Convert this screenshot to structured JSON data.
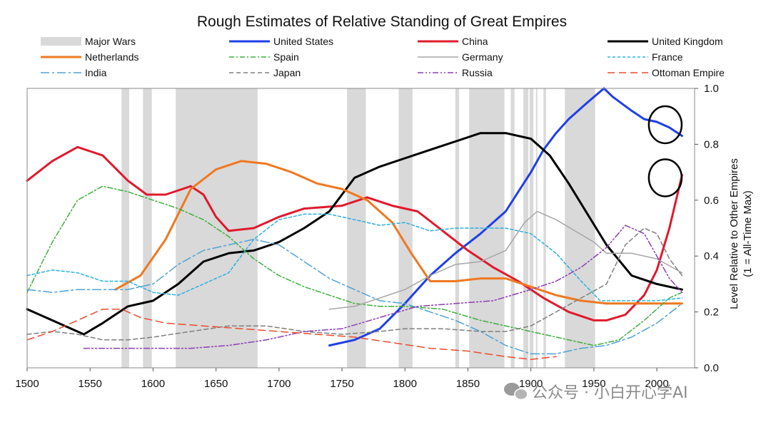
{
  "chart_data": {
    "type": "line",
    "title": "Rough Estimates of Relative Standing of Great Empires",
    "xlabel": "",
    "ylabel": "Level Relative to Other Empires",
    "ylabel_sub": "(1 = All-Time Max)",
    "xlim": [
      1500,
      2030
    ],
    "ylim": [
      0,
      1
    ],
    "x_ticks": [
      "1500",
      "1550",
      "1600",
      "1650",
      "1700",
      "1750",
      "1800",
      "1850",
      "1900",
      "1950",
      "2000"
    ],
    "y_ticks": [
      "0.0",
      "0.2",
      "0.4",
      "0.6",
      "0.8",
      "1.0"
    ],
    "y_axis_side": "right",
    "legend_position": "top",
    "major_wars_label": "Major Wars",
    "major_wars_color": "#d9d9d9",
    "major_wars": [
      [
        1575,
        1581
      ],
      [
        1592,
        1599
      ],
      [
        1618,
        1683
      ],
      [
        1754,
        1769
      ],
      [
        1795,
        1806
      ],
      [
        1840,
        1843
      ],
      [
        1851,
        1879
      ],
      [
        1884,
        1887
      ],
      [
        1894,
        1898
      ],
      [
        1899,
        1902
      ],
      [
        1904,
        1905
      ],
      [
        1910,
        1912
      ],
      [
        1927,
        1951
      ]
    ],
    "highlights": [
      {
        "x": 2005,
        "y": 0.87
      },
      {
        "x": 2005,
        "y": 0.68
      }
    ],
    "series": [
      {
        "name": "United States",
        "color": "#1f3fe8",
        "width": 3,
        "dash": "",
        "points": [
          [
            1740,
            0.08
          ],
          [
            1760,
            0.1
          ],
          [
            1780,
            0.14
          ],
          [
            1800,
            0.23
          ],
          [
            1820,
            0.33
          ],
          [
            1840,
            0.41
          ],
          [
            1860,
            0.48
          ],
          [
            1880,
            0.56
          ],
          [
            1890,
            0.63
          ],
          [
            1900,
            0.7
          ],
          [
            1910,
            0.78
          ],
          [
            1920,
            0.84
          ],
          [
            1930,
            0.89
          ],
          [
            1945,
            0.95
          ],
          [
            1958,
            1.0
          ],
          [
            1965,
            0.97
          ],
          [
            1980,
            0.92
          ],
          [
            1990,
            0.89
          ],
          [
            2000,
            0.88
          ],
          [
            2010,
            0.86
          ],
          [
            2020,
            0.83
          ]
        ]
      },
      {
        "name": "China",
        "color": "#e0192d",
        "width": 3,
        "dash": "",
        "points": [
          [
            1500,
            0.67
          ],
          [
            1520,
            0.74
          ],
          [
            1540,
            0.79
          ],
          [
            1560,
            0.76
          ],
          [
            1580,
            0.67
          ],
          [
            1595,
            0.62
          ],
          [
            1610,
            0.62
          ],
          [
            1630,
            0.65
          ],
          [
            1640,
            0.62
          ],
          [
            1650,
            0.54
          ],
          [
            1660,
            0.49
          ],
          [
            1680,
            0.5
          ],
          [
            1700,
            0.54
          ],
          [
            1720,
            0.57
          ],
          [
            1750,
            0.58
          ],
          [
            1770,
            0.61
          ],
          [
            1790,
            0.58
          ],
          [
            1810,
            0.56
          ],
          [
            1830,
            0.49
          ],
          [
            1850,
            0.42
          ],
          [
            1870,
            0.36
          ],
          [
            1890,
            0.31
          ],
          [
            1910,
            0.25
          ],
          [
            1930,
            0.2
          ],
          [
            1950,
            0.17
          ],
          [
            1960,
            0.17
          ],
          [
            1975,
            0.19
          ],
          [
            1990,
            0.26
          ],
          [
            2000,
            0.35
          ],
          [
            2010,
            0.5
          ],
          [
            2020,
            0.69
          ]
        ]
      },
      {
        "name": "United Kingdom",
        "color": "#000000",
        "width": 3,
        "dash": "",
        "points": [
          [
            1500,
            0.21
          ],
          [
            1520,
            0.17
          ],
          [
            1545,
            0.12
          ],
          [
            1560,
            0.16
          ],
          [
            1580,
            0.22
          ],
          [
            1600,
            0.24
          ],
          [
            1620,
            0.3
          ],
          [
            1640,
            0.38
          ],
          [
            1660,
            0.41
          ],
          [
            1680,
            0.42
          ],
          [
            1700,
            0.45
          ],
          [
            1720,
            0.5
          ],
          [
            1740,
            0.56
          ],
          [
            1760,
            0.68
          ],
          [
            1780,
            0.72
          ],
          [
            1800,
            0.75
          ],
          [
            1820,
            0.78
          ],
          [
            1840,
            0.81
          ],
          [
            1860,
            0.84
          ],
          [
            1880,
            0.84
          ],
          [
            1900,
            0.82
          ],
          [
            1915,
            0.76
          ],
          [
            1930,
            0.66
          ],
          [
            1945,
            0.55
          ],
          [
            1960,
            0.44
          ],
          [
            1980,
            0.33
          ],
          [
            2000,
            0.3
          ],
          [
            2010,
            0.29
          ],
          [
            2020,
            0.28
          ]
        ]
      },
      {
        "name": "Netherlands",
        "color": "#f07820",
        "width": 3,
        "dash": "",
        "points": [
          [
            1570,
            0.28
          ],
          [
            1590,
            0.33
          ],
          [
            1610,
            0.46
          ],
          [
            1630,
            0.64
          ],
          [
            1650,
            0.71
          ],
          [
            1670,
            0.74
          ],
          [
            1690,
            0.73
          ],
          [
            1710,
            0.7
          ],
          [
            1730,
            0.66
          ],
          [
            1750,
            0.64
          ],
          [
            1770,
            0.6
          ],
          [
            1790,
            0.52
          ],
          [
            1805,
            0.41
          ],
          [
            1820,
            0.31
          ],
          [
            1840,
            0.31
          ],
          [
            1860,
            0.32
          ],
          [
            1880,
            0.32
          ],
          [
            1900,
            0.29
          ],
          [
            1920,
            0.26
          ],
          [
            1940,
            0.24
          ],
          [
            1960,
            0.23
          ],
          [
            1990,
            0.23
          ],
          [
            2020,
            0.23
          ]
        ]
      },
      {
        "name": "Spain",
        "color": "#3fae3f",
        "width": 1.5,
        "dash": "7,3,2,3",
        "points": [
          [
            1500,
            0.27
          ],
          [
            1520,
            0.45
          ],
          [
            1540,
            0.6
          ],
          [
            1560,
            0.65
          ],
          [
            1580,
            0.63
          ],
          [
            1600,
            0.6
          ],
          [
            1620,
            0.57
          ],
          [
            1640,
            0.53
          ],
          [
            1660,
            0.47
          ],
          [
            1680,
            0.39
          ],
          [
            1700,
            0.33
          ],
          [
            1720,
            0.29
          ],
          [
            1740,
            0.26
          ],
          [
            1760,
            0.23
          ],
          [
            1780,
            0.22
          ],
          [
            1800,
            0.22
          ],
          [
            1830,
            0.21
          ],
          [
            1860,
            0.17
          ],
          [
            1890,
            0.14
          ],
          [
            1920,
            0.11
          ],
          [
            1950,
            0.08
          ],
          [
            1970,
            0.1
          ],
          [
            1990,
            0.17
          ],
          [
            2010,
            0.25
          ],
          [
            2020,
            0.27
          ]
        ]
      },
      {
        "name": "Germany",
        "color": "#a6a6a6",
        "width": 1.5,
        "dash": "",
        "points": [
          [
            1740,
            0.21
          ],
          [
            1760,
            0.22
          ],
          [
            1780,
            0.25
          ],
          [
            1800,
            0.28
          ],
          [
            1820,
            0.33
          ],
          [
            1840,
            0.37
          ],
          [
            1860,
            0.38
          ],
          [
            1880,
            0.42
          ],
          [
            1895,
            0.52
          ],
          [
            1905,
            0.56
          ],
          [
            1920,
            0.53
          ],
          [
            1935,
            0.49
          ],
          [
            1950,
            0.45
          ],
          [
            1960,
            0.41
          ],
          [
            1980,
            0.41
          ],
          [
            2000,
            0.39
          ],
          [
            2020,
            0.34
          ]
        ]
      },
      {
        "name": "France",
        "color": "#2bb0e0",
        "width": 1.5,
        "dash": "4,3",
        "points": [
          [
            1500,
            0.33
          ],
          [
            1520,
            0.35
          ],
          [
            1540,
            0.34
          ],
          [
            1560,
            0.31
          ],
          [
            1580,
            0.31
          ],
          [
            1600,
            0.27
          ],
          [
            1620,
            0.26
          ],
          [
            1640,
            0.3
          ],
          [
            1660,
            0.34
          ],
          [
            1680,
            0.46
          ],
          [
            1700,
            0.53
          ],
          [
            1720,
            0.55
          ],
          [
            1740,
            0.55
          ],
          [
            1760,
            0.53
          ],
          [
            1780,
            0.51
          ],
          [
            1800,
            0.52
          ],
          [
            1820,
            0.49
          ],
          [
            1840,
            0.5
          ],
          [
            1860,
            0.5
          ],
          [
            1880,
            0.5
          ],
          [
            1900,
            0.48
          ],
          [
            1920,
            0.41
          ],
          [
            1940,
            0.31
          ],
          [
            1955,
            0.24
          ],
          [
            1980,
            0.24
          ],
          [
            2000,
            0.24
          ],
          [
            2020,
            0.25
          ]
        ]
      },
      {
        "name": "India",
        "color": "#4ea3d6",
        "width": 1.5,
        "dash": "12,4,3,4",
        "points": [
          [
            1500,
            0.28
          ],
          [
            1520,
            0.27
          ],
          [
            1540,
            0.28
          ],
          [
            1560,
            0.28
          ],
          [
            1580,
            0.28
          ],
          [
            1600,
            0.3
          ],
          [
            1620,
            0.37
          ],
          [
            1640,
            0.42
          ],
          [
            1660,
            0.44
          ],
          [
            1680,
            0.46
          ],
          [
            1700,
            0.44
          ],
          [
            1720,
            0.38
          ],
          [
            1740,
            0.32
          ],
          [
            1760,
            0.28
          ],
          [
            1780,
            0.24
          ],
          [
            1800,
            0.23
          ],
          [
            1820,
            0.2
          ],
          [
            1840,
            0.17
          ],
          [
            1860,
            0.13
          ],
          [
            1880,
            0.08
          ],
          [
            1900,
            0.05
          ],
          [
            1920,
            0.05
          ],
          [
            1940,
            0.07
          ],
          [
            1960,
            0.08
          ],
          [
            1980,
            0.11
          ],
          [
            2000,
            0.16
          ],
          [
            2020,
            0.23
          ]
        ]
      },
      {
        "name": "Japan",
        "color": "#7f7f7f",
        "width": 1.5,
        "dash": "6,4",
        "points": [
          [
            1500,
            0.12
          ],
          [
            1520,
            0.13
          ],
          [
            1540,
            0.12
          ],
          [
            1560,
            0.1
          ],
          [
            1580,
            0.1
          ],
          [
            1600,
            0.11
          ],
          [
            1630,
            0.13
          ],
          [
            1660,
            0.15
          ],
          [
            1690,
            0.15
          ],
          [
            1720,
            0.13
          ],
          [
            1750,
            0.12
          ],
          [
            1780,
            0.13
          ],
          [
            1800,
            0.14
          ],
          [
            1830,
            0.14
          ],
          [
            1860,
            0.13
          ],
          [
            1880,
            0.13
          ],
          [
            1900,
            0.15
          ],
          [
            1920,
            0.2
          ],
          [
            1940,
            0.25
          ],
          [
            1960,
            0.3
          ],
          [
            1975,
            0.44
          ],
          [
            1990,
            0.5
          ],
          [
            2000,
            0.48
          ],
          [
            2010,
            0.39
          ],
          [
            2020,
            0.33
          ]
        ]
      },
      {
        "name": "Russia",
        "color": "#8a3fb5",
        "width": 1.5,
        "dash": "8,3,2,3,2,3",
        "points": [
          [
            1545,
            0.07
          ],
          [
            1570,
            0.07
          ],
          [
            1600,
            0.07
          ],
          [
            1630,
            0.07
          ],
          [
            1660,
            0.08
          ],
          [
            1690,
            0.1
          ],
          [
            1720,
            0.13
          ],
          [
            1750,
            0.14
          ],
          [
            1780,
            0.18
          ],
          [
            1810,
            0.22
          ],
          [
            1840,
            0.23
          ],
          [
            1870,
            0.24
          ],
          [
            1900,
            0.28
          ],
          [
            1920,
            0.31
          ],
          [
            1940,
            0.36
          ],
          [
            1960,
            0.43
          ],
          [
            1975,
            0.51
          ],
          [
            1990,
            0.48
          ],
          [
            2000,
            0.4
          ],
          [
            2010,
            0.32
          ],
          [
            2020,
            0.27
          ]
        ]
      },
      {
        "name": "Ottoman Empire",
        "color": "#ee4b2b",
        "width": 1.5,
        "dash": "10,6",
        "points": [
          [
            1500,
            0.1
          ],
          [
            1520,
            0.13
          ],
          [
            1540,
            0.17
          ],
          [
            1560,
            0.21
          ],
          [
            1575,
            0.21
          ],
          [
            1590,
            0.18
          ],
          [
            1610,
            0.16
          ],
          [
            1640,
            0.15
          ],
          [
            1670,
            0.14
          ],
          [
            1700,
            0.13
          ],
          [
            1730,
            0.12
          ],
          [
            1760,
            0.11
          ],
          [
            1790,
            0.09
          ],
          [
            1820,
            0.07
          ],
          [
            1850,
            0.06
          ],
          [
            1880,
            0.04
          ],
          [
            1900,
            0.03
          ],
          [
            1920,
            0.04
          ]
        ]
      }
    ]
  },
  "watermark": {
    "text": "公众号 · 小白开心学AI"
  }
}
